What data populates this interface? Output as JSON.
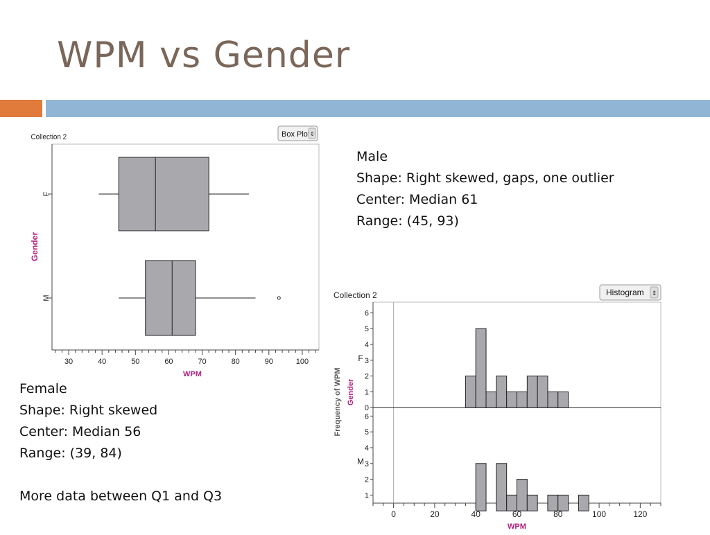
{
  "slide": {
    "title": "WPM vs Gender"
  },
  "colors": {
    "title": "#7a6759",
    "accent_orange": "#e07b3c",
    "accent_blue": "#91b5d4",
    "box_fill": "#a8a8ad",
    "axis_label_magenta": "#b0207e"
  },
  "male_text": {
    "heading": "Male",
    "shape": "Shape: Right skewed, gaps, one outlier",
    "center": "Center: Median 61",
    "range": "Range: (45, 93)"
  },
  "female_text": {
    "heading": "Female",
    "shape": "Shape: Right skewed",
    "center": "Center: Median 56",
    "range": "Range: (39, 84)",
    "note": "More data between Q1 and Q3"
  },
  "chart_data": [
    {
      "type": "box",
      "collection_label": "Collection 2",
      "selector_label": "Box Plot",
      "xlabel": "WPM",
      "ylabel": "Gender",
      "xlim": [
        25,
        105
      ],
      "xticks": [
        30,
        40,
        50,
        60,
        70,
        80,
        90,
        100
      ],
      "grid": false,
      "groups": [
        {
          "name": "F",
          "min": 39,
          "q1": 45,
          "median": 56,
          "q3": 72,
          "max": 84,
          "outliers": []
        },
        {
          "name": "M",
          "min": 45,
          "q1": 53,
          "median": 61,
          "q3": 68,
          "max": 86,
          "outliers": [
            93
          ]
        }
      ]
    },
    {
      "type": "bar",
      "subtype": "histogram",
      "collection_label": "Collection 2",
      "selector_label": "Histogram",
      "xlabel": "WPM",
      "ylabel": "Frequency of WPM",
      "group_label": "Gender",
      "xlim": [
        -10,
        130
      ],
      "xticks": [
        0,
        20,
        40,
        60,
        80,
        100,
        120
      ],
      "bin_width": 5,
      "panels": [
        {
          "name": "F",
          "ylim": [
            0,
            6.5
          ],
          "yticks": [
            0,
            1,
            2,
            3,
            4,
            5,
            6
          ],
          "bins": [
            {
              "x": 37.5,
              "count": 2
            },
            {
              "x": 42.5,
              "count": 5
            },
            {
              "x": 47.5,
              "count": 1
            },
            {
              "x": 52.5,
              "count": 2
            },
            {
              "x": 57.5,
              "count": 1
            },
            {
              "x": 62.5,
              "count": 1
            },
            {
              "x": 67.5,
              "count": 2
            },
            {
              "x": 72.5,
              "count": 2
            },
            {
              "x": 77.5,
              "count": 1
            },
            {
              "x": 82.5,
              "count": 1
            }
          ]
        },
        {
          "name": "M",
          "ylim": [
            0,
            6.5
          ],
          "yticks": [
            1,
            2,
            3,
            4,
            5,
            6
          ],
          "bins": [
            {
              "x": 42.5,
              "count": 3
            },
            {
              "x": 52.5,
              "count": 3
            },
            {
              "x": 57.5,
              "count": 1
            },
            {
              "x": 62.5,
              "count": 2
            },
            {
              "x": 67.5,
              "count": 1
            },
            {
              "x": 77.5,
              "count": 1
            },
            {
              "x": 82.5,
              "count": 1
            },
            {
              "x": 92.5,
              "count": 1
            }
          ]
        }
      ]
    }
  ]
}
